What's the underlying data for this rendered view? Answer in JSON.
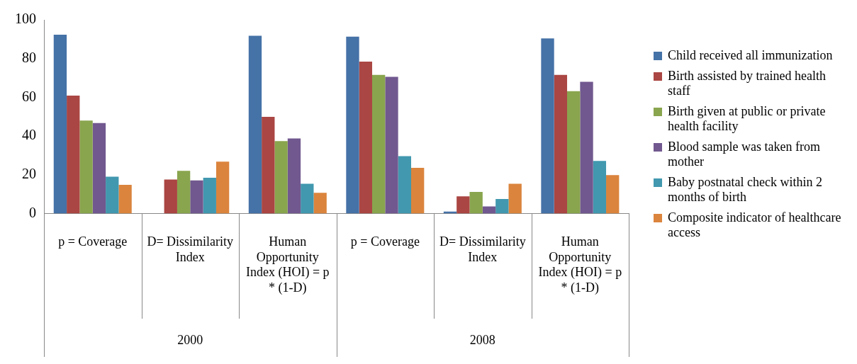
{
  "chart_data": {
    "type": "bar",
    "categories": [
      "p = Coverage",
      "D= Dissimilarity Index",
      "Human Opportunity Index (HOI) = p * (1-D)",
      "p = Coverage",
      "D= Dissimilarity Index",
      "Human Opportunity Index (HOI) = p * (1-D)"
    ],
    "series": [
      {
        "name": "Child received all immunization",
        "color": "#4572a7",
        "values": [
          92.3,
          null,
          91.8,
          91.3,
          1,
          90.4
        ]
      },
      {
        "name": "Birth assisted by trained health staff",
        "color": "#aa4643",
        "values": [
          60.9,
          17.6,
          49.9,
          78.4,
          8.9,
          71.6
        ]
      },
      {
        "name": "Birth given at public or private health facility",
        "color": "#89a54e",
        "values": [
          48,
          22.1,
          37.4,
          71.6,
          11.2,
          63.2
        ]
      },
      {
        "name": "Blood sample was taken from mother",
        "color": "#71588f",
        "values": [
          46.7,
          17.1,
          38.8,
          70.6,
          3.7,
          68
        ]
      },
      {
        "name": "Baby postnatal check within 2 months of birth",
        "color": "#4198af",
        "values": [
          19,
          18.5,
          15.4,
          29.6,
          7.5,
          27.2
        ]
      },
      {
        "name": "Composite indicator of healthcare access",
        "color": "#db843d",
        "values": [
          14.8,
          26.8,
          10.7,
          23.6,
          15.4,
          19.9
        ]
      }
    ],
    "annotations": [
      "2000",
      "2008"
    ],
    "ylim": [
      0,
      100
    ],
    "yticks": [
      0,
      20,
      40,
      60,
      80,
      100
    ],
    "grid": false,
    "legend": "right"
  }
}
